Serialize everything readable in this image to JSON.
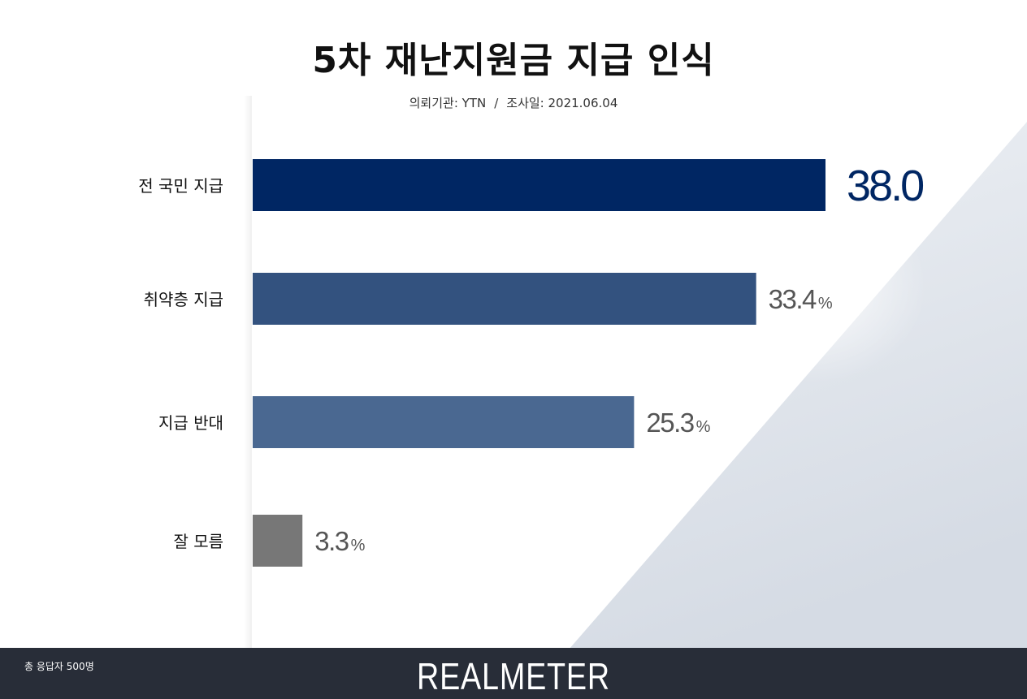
{
  "header": {
    "title": "5차 재난지원금 지급 인식",
    "client_label": "의뢰기관: YTN",
    "separator": "/",
    "date_label": "조사일: 2021.06.04"
  },
  "footer": {
    "note": "총 응답자 500명",
    "brand": "REALMETER"
  },
  "colors": {
    "accent": "#002663",
    "bars": [
      "#002663",
      "#33527f",
      "#4a6891",
      "#777777"
    ],
    "value_text": "#555555"
  },
  "chart_data": {
    "type": "bar",
    "orientation": "horizontal",
    "title": "5차 재난지원금 지급 인식",
    "categories": [
      "전 국민 지급",
      "취약층 지급",
      "지급 반대",
      "잘 모름"
    ],
    "values": [
      38.0,
      33.4,
      25.3,
      3.3
    ],
    "value_labels": [
      "38.0",
      "33.4",
      "25.3",
      "3.3"
    ],
    "unit": "%",
    "xlim": [
      0,
      38.0
    ],
    "grid": false,
    "legend": "none"
  }
}
